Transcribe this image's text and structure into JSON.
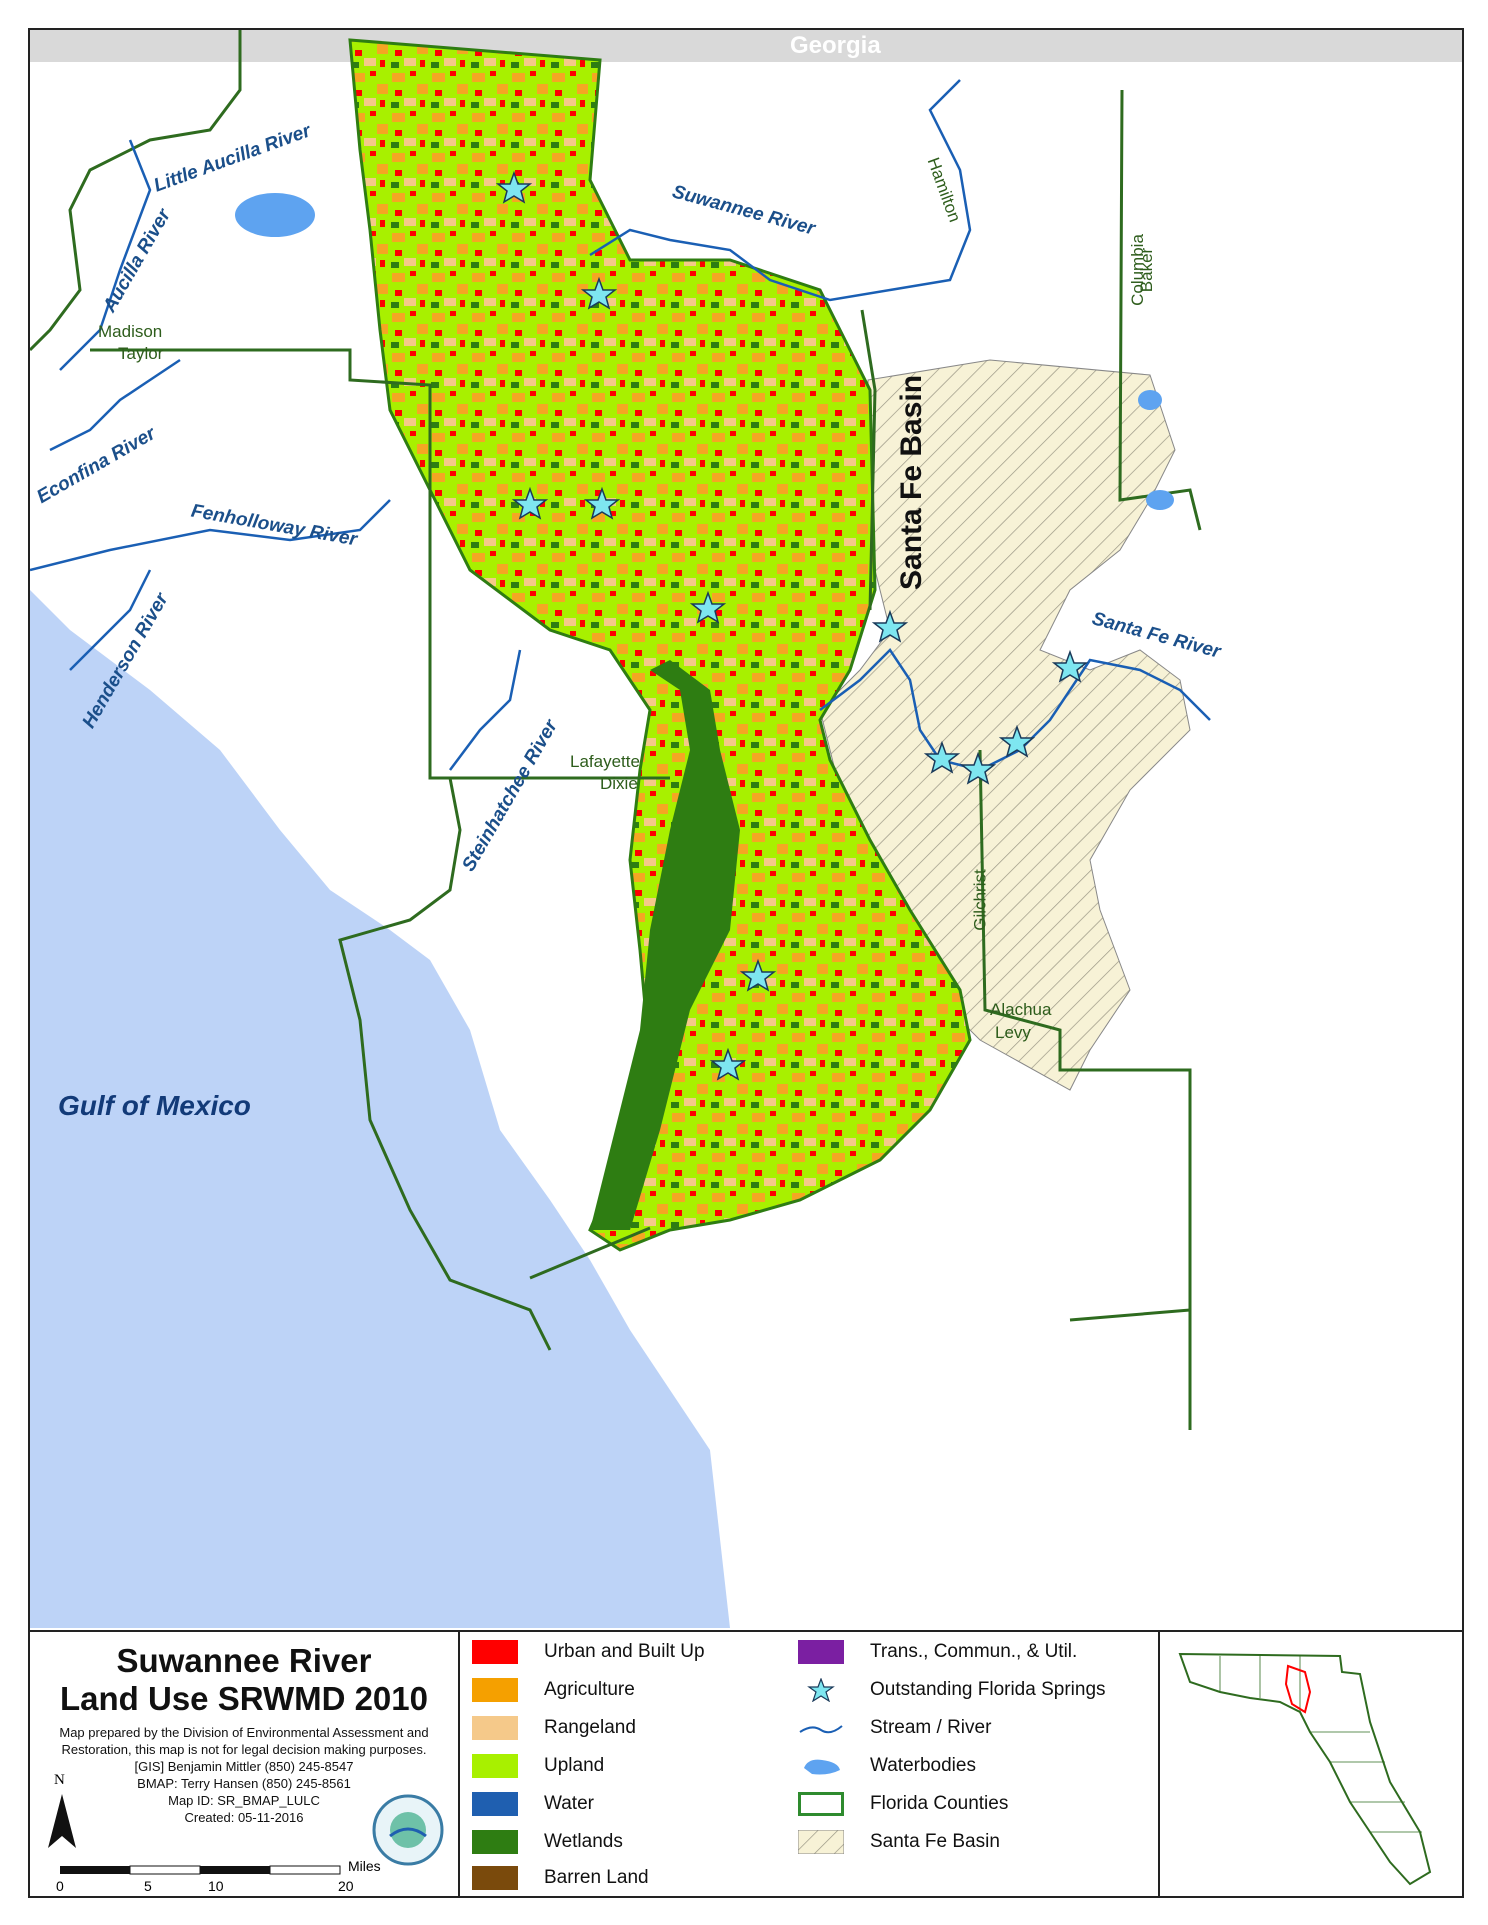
{
  "map": {
    "neighbor_state": "Georgia",
    "basin_label": "Santa Fe Basin",
    "water_body": "Gulf of Mexico",
    "rivers": [
      {
        "name": "Little Aucilla River"
      },
      {
        "name": "Aucilla River"
      },
      {
        "name": "Suwannee River"
      },
      {
        "name": "Econfina River"
      },
      {
        "name": "Fenholloway River"
      },
      {
        "name": "Henderson River"
      },
      {
        "name": "Steinhatchee River"
      },
      {
        "name": "Santa Fe River"
      }
    ],
    "counties": [
      "Madison",
      "Taylor",
      "Lafayette",
      "Dixie",
      "Columbia",
      "Hamilton",
      "Baker",
      "Gilchrist",
      "Alachua",
      "Levy"
    ],
    "colors": {
      "water": "#bdd3f7",
      "urban": "#ff0000",
      "agriculture": "#f5a623",
      "rangeland": "#f5c98a",
      "upland": "#a8f000",
      "wetlands": "#2e7d12",
      "basin_fill": "#f7f2d6",
      "county_line": "#2e6b1f",
      "stream": "#1a5fb4",
      "spring": "#7ee6f0"
    }
  },
  "legend": {
    "title_line1": "Suwannee River",
    "title_line2": "Land Use SRWMD 2010",
    "credits": [
      "Map prepared by the Division of Environmental Assessment and",
      "Restoration, this map is not for legal decision making purposes.",
      "[GIS] Benjamin Mittler (850) 245-8547",
      "BMAP: Terry Hansen (850) 245-8561",
      "Map ID: SR_BMAP_LULC",
      "Created: 05-11-2016"
    ],
    "north_label": "N",
    "scale": {
      "ticks": [
        "0",
        "5",
        "10",
        "20"
      ],
      "unit": "Miles"
    },
    "items_left": [
      {
        "label": "Urban and Built Up",
        "color": "#ff0000"
      },
      {
        "label": "Agriculture",
        "color": "#f5a000"
      },
      {
        "label": "Rangeland",
        "color": "#f5c98a"
      },
      {
        "label": "Upland",
        "color": "#a8f000"
      },
      {
        "label": "Water",
        "color": "#1f5fb0"
      },
      {
        "label": "Wetlands",
        "color": "#2e7d12"
      },
      {
        "label": "Barren Land",
        "color": "#7a4a0c"
      }
    ],
    "items_right": [
      {
        "label": "Trans., Commun., & Util.",
        "symbol": "purple-box"
      },
      {
        "label": "Outstanding Florida Springs",
        "symbol": "star-icon"
      },
      {
        "label": "Stream / River",
        "symbol": "stream-line"
      },
      {
        "label": "Waterbodies",
        "symbol": "waterbody-shape"
      },
      {
        "label": "Florida Counties",
        "symbol": "county-outline"
      },
      {
        "label": "Santa Fe Basin",
        "symbol": "hatched-box"
      }
    ]
  }
}
